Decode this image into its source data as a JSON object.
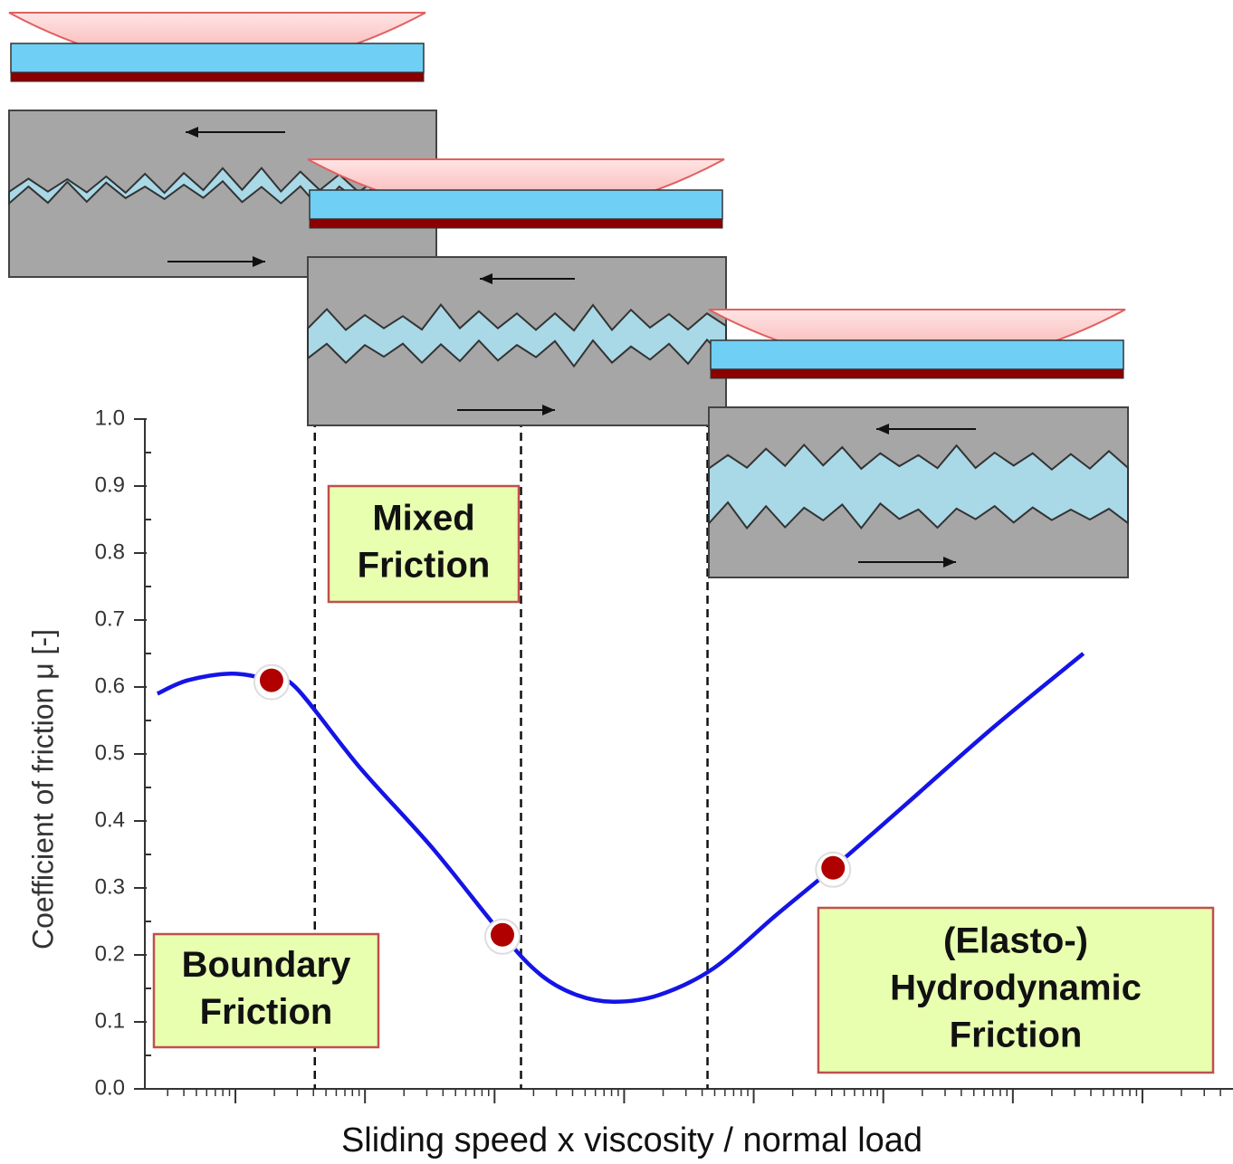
{
  "chart_data": {
    "type": "line",
    "x_label": "Sliding speed x viscosity / normal load",
    "y_label": "Coefficient of friction μ [-]",
    "log_x": true,
    "xlim": [
      0.2,
      50000000
    ],
    "xticks": [
      1,
      10,
      100,
      1000,
      10000,
      100000,
      1000000,
      10000000
    ],
    "ylim": [
      0,
      1
    ],
    "yticks": [
      {
        "value": 0,
        "label": "0.0"
      },
      0.1,
      0.2,
      0.3,
      0.4,
      0.5,
      0.6,
      0.7,
      0.8,
      0.9,
      {
        "value": 1,
        "label": "1.0"
      }
    ],
    "x": [
      0.25,
      0.43,
      0.95,
      1.9,
      2.9,
      9.1,
      33,
      115,
      228,
      433,
      830,
      1850,
      4900,
      15000,
      41000,
      140000,
      710000,
      3500000
    ],
    "series": [
      {
        "color": "#1414e6",
        "values": [
          0.59,
          0.61,
          0.62,
          0.61,
          0.6,
          0.48,
          0.36,
          0.23,
          0.17,
          0.14,
          0.13,
          0.14,
          0.18,
          0.26,
          0.33,
          0.42,
          0.54,
          0.65
        ]
      }
    ],
    "markers": {
      "color": "#b00000",
      "x": [
        1.9,
        115,
        41000
      ],
      "values": [
        0.61,
        0.23,
        0.33
      ]
    },
    "dividers": [
      4.1,
      160,
      4400
    ],
    "regions": [
      {
        "lines": [
          "Boundary",
          "Friction"
        ]
      },
      {
        "lines": [
          "Mixed",
          "Friction"
        ]
      },
      {
        "lines": [
          "(Elasto-)",
          "Hydrodynamic",
          "Friction"
        ]
      }
    ]
  }
}
